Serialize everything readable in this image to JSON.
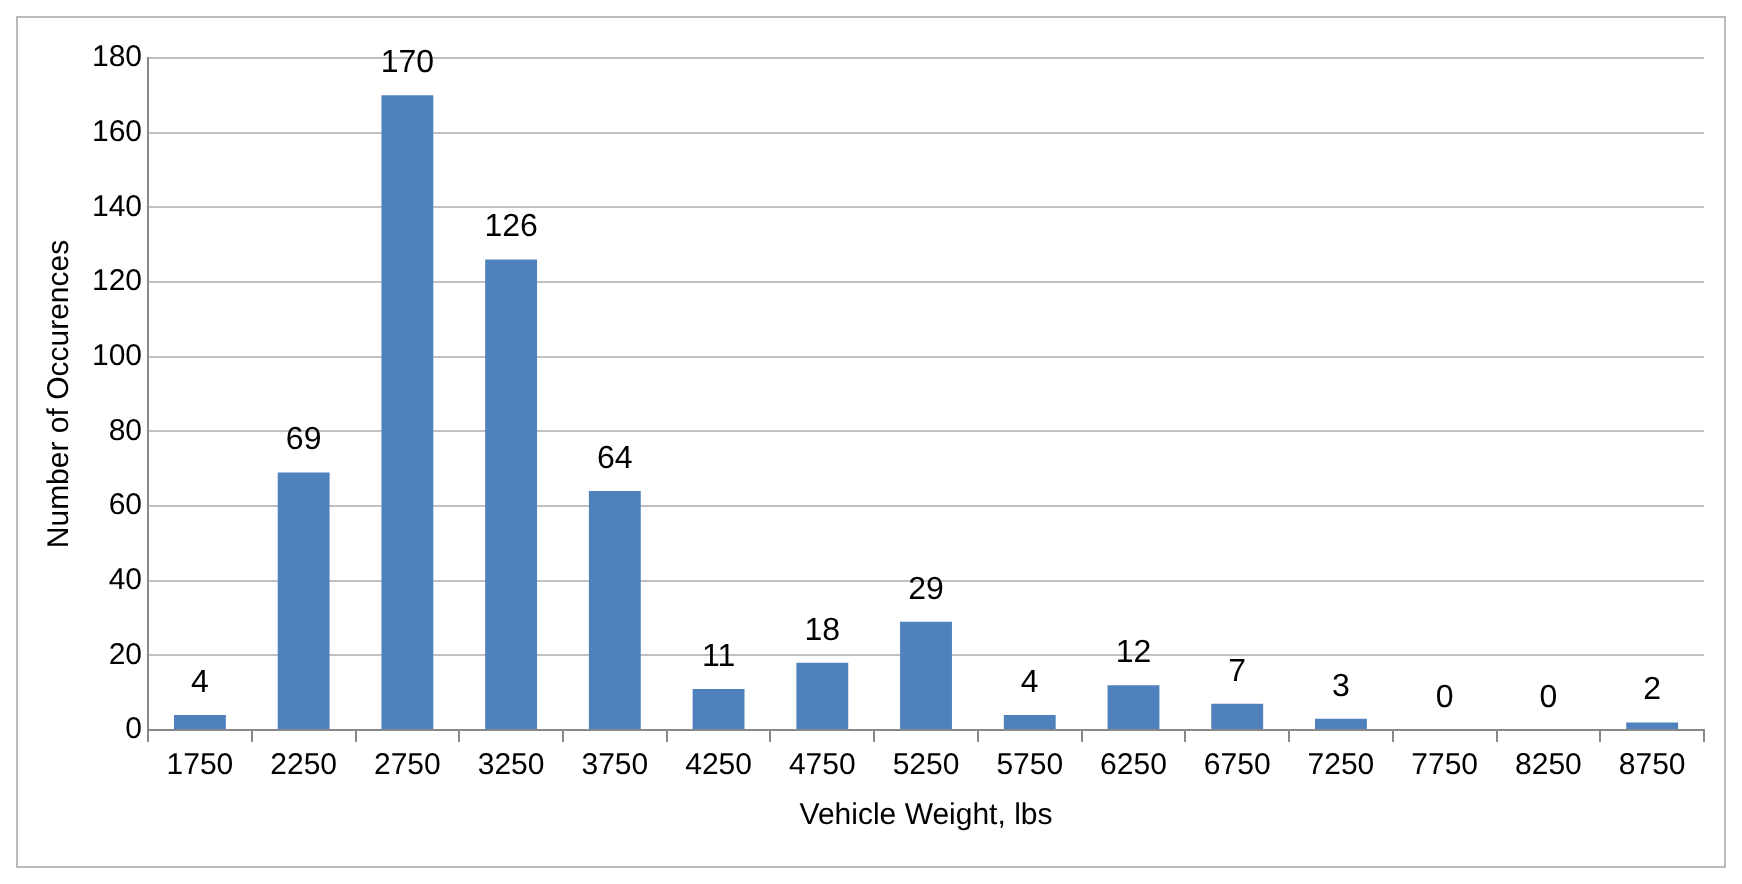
{
  "chart_data": {
    "type": "bar",
    "xlabel": "Vehicle Weight, lbs",
    "ylabel": "Number of Occurences",
    "categories": [
      "1750",
      "2250",
      "2750",
      "3250",
      "3750",
      "4250",
      "4750",
      "5250",
      "5750",
      "6250",
      "6750",
      "7250",
      "7750",
      "8250",
      "8750"
    ],
    "values": [
      4,
      69,
      170,
      126,
      64,
      11,
      18,
      29,
      4,
      12,
      7,
      3,
      0,
      0,
      2
    ],
    "color": "#4f81bd",
    "ylim": [
      0,
      180
    ],
    "yticks": [
      0,
      20,
      40,
      60,
      80,
      100,
      120,
      140,
      160,
      180
    ],
    "grid": "y",
    "legend": false,
    "data_labels": true
  }
}
